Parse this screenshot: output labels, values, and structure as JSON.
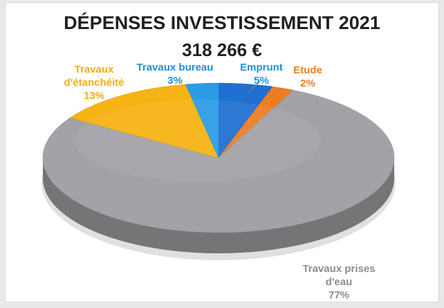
{
  "chart_data": {
    "type": "pie",
    "style": "3d",
    "title": "DÉPENSES INVESTISSEMENT 2021",
    "subtitle": "318 266 €",
    "slices": [
      {
        "label": "Emprunt",
        "label_lines": [
          "Emprunt",
          "5%"
        ],
        "value": 5,
        "color": "#1f70d1"
      },
      {
        "label": "Etude",
        "label_lines": [
          "Etude",
          "2%"
        ],
        "value": 2,
        "color": "#ee7d22"
      },
      {
        "label": "Travaux prises d'eau",
        "label_lines": [
          "Travaux prises",
          "d'eau",
          "77%"
        ],
        "value": 77,
        "color": "#a2a2a7"
      },
      {
        "label": "Travaux d'étanchéité",
        "label_lines": [
          "Travaux",
          "d'étanchéité",
          "13%"
        ],
        "value": 13,
        "color": "#f6b314"
      },
      {
        "label": "Travaux bureau",
        "label_lines": [
          "Travaux bureau",
          "3%"
        ],
        "value": 3,
        "color": "#2c9ce6"
      }
    ],
    "label_colors": {
      "Emprunt": "#1e8fe0",
      "Etude": "#ee7d22",
      "Travaux prises d'eau": "#8d8d93",
      "Travaux d'étanchéité": "#f2ae12",
      "Travaux bureau": "#1e8fe0"
    }
  }
}
